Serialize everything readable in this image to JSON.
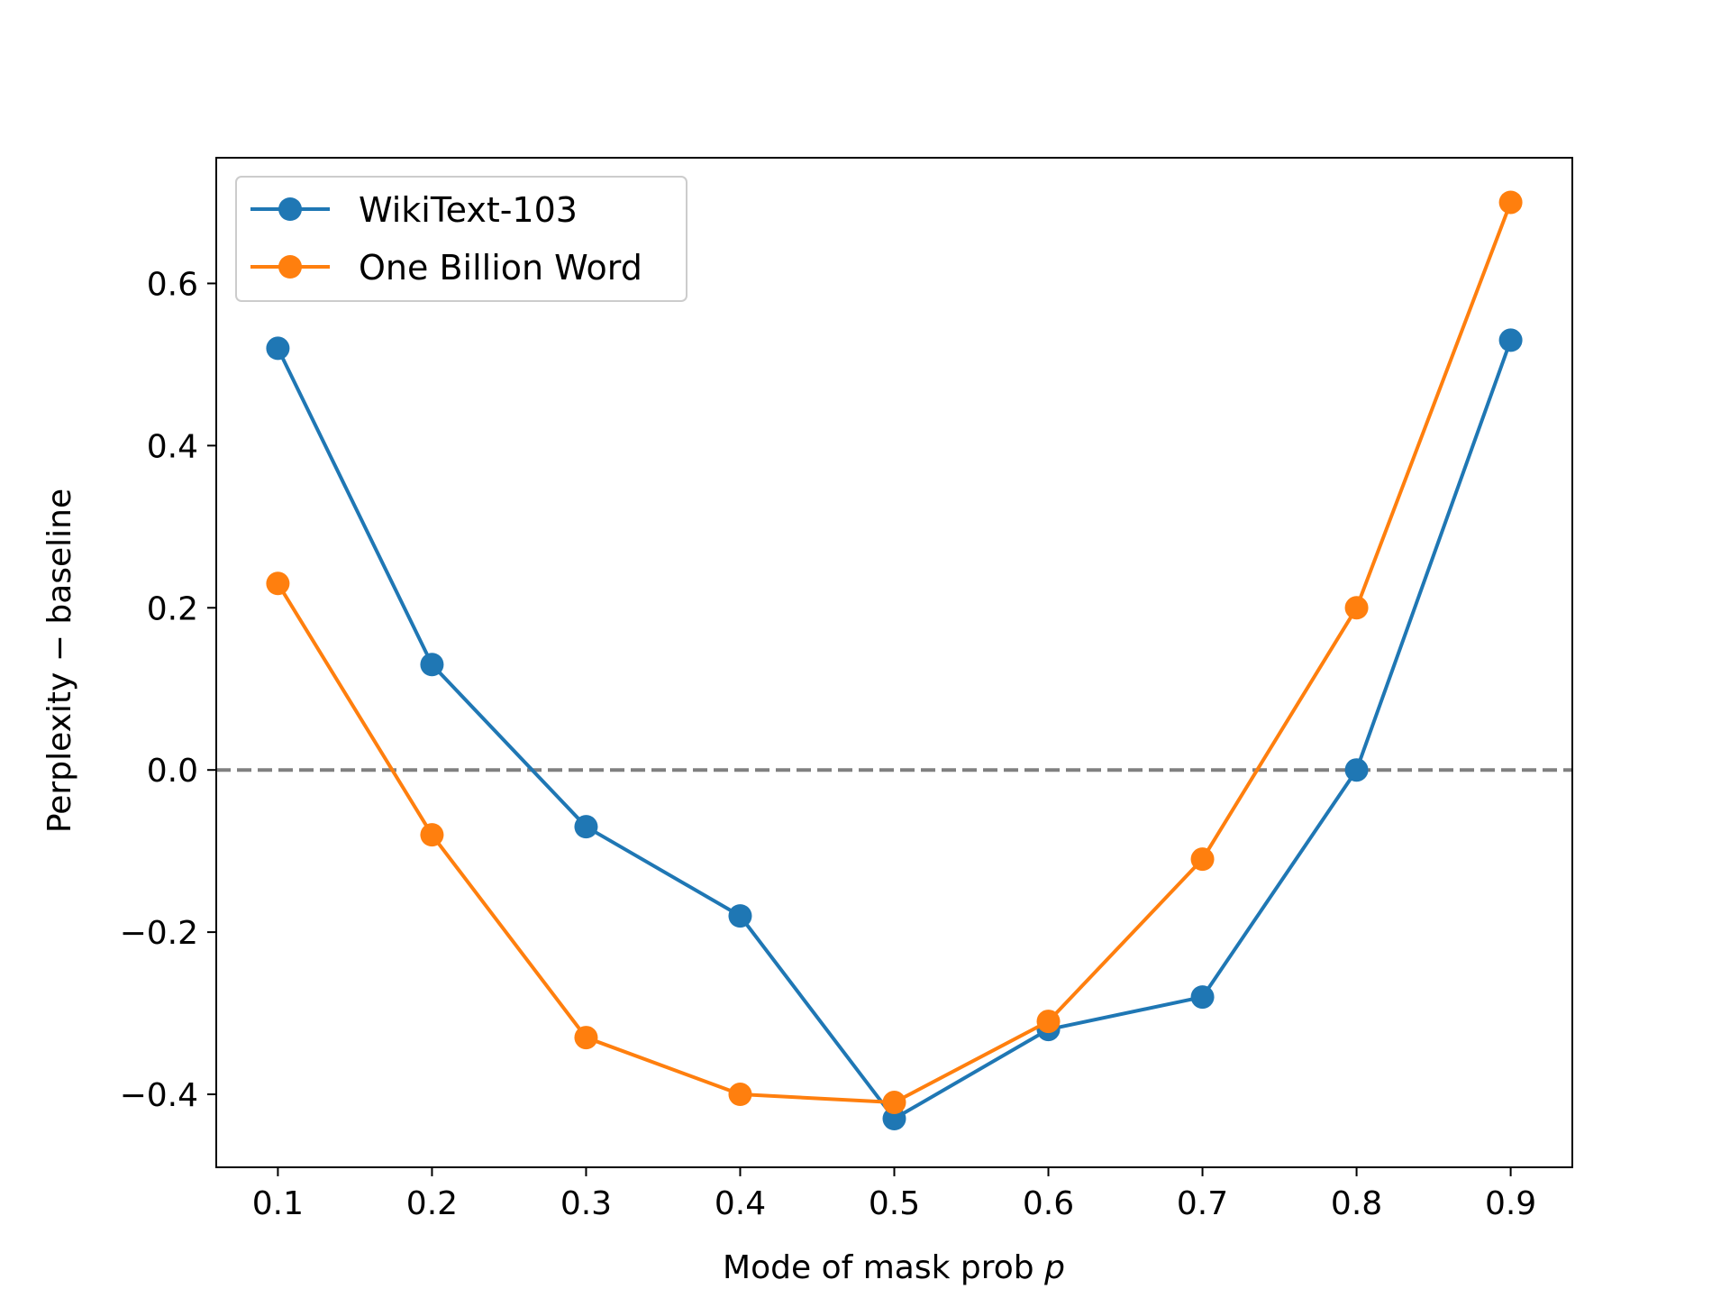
{
  "chart_data": {
    "type": "line",
    "xlabel": "Mode of mask prob",
    "xlabel_var": "p",
    "ylabel": "Perplexity − baseline",
    "x": [
      0.1,
      0.2,
      0.3,
      0.4,
      0.5,
      0.6,
      0.7,
      0.8,
      0.9
    ],
    "x_ticks": [
      "0.1",
      "0.2",
      "0.3",
      "0.4",
      "0.5",
      "0.6",
      "0.7",
      "0.8",
      "0.9"
    ],
    "y_ticks": [
      "−0.4",
      "−0.2",
      "0.0",
      "0.2",
      "0.4",
      "0.6"
    ],
    "y_tick_values": [
      -0.4,
      -0.2,
      0.0,
      0.2,
      0.4,
      0.6
    ],
    "xlim": [
      0.06,
      0.94
    ],
    "ylim": [
      -0.49,
      0.755
    ],
    "grid": false,
    "legend_position": "top-left",
    "reference_line": {
      "y": 0.0,
      "style": "dashed",
      "color": "#808080"
    },
    "series": [
      {
        "name": "WikiText-103",
        "color": "#1f77b4",
        "values": [
          0.52,
          0.13,
          -0.07,
          -0.18,
          -0.43,
          -0.32,
          -0.28,
          0.0,
          0.53
        ]
      },
      {
        "name": "One Billion Word",
        "color": "#ff7f0e",
        "values": [
          0.23,
          -0.08,
          -0.33,
          -0.4,
          -0.41,
          -0.31,
          -0.11,
          0.2,
          0.7
        ]
      }
    ]
  }
}
